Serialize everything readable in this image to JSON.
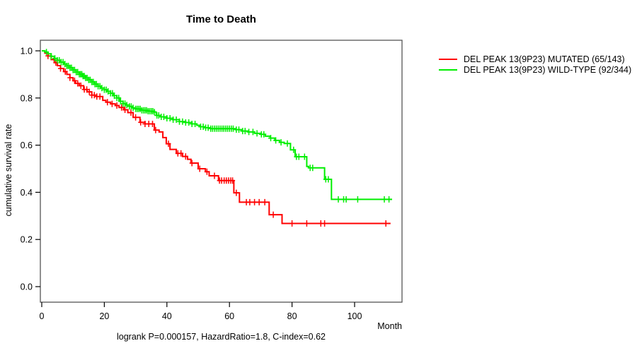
{
  "chart_data": {
    "type": "line",
    "subtype": "kaplan-meier-step",
    "title": "Time to Death",
    "xlabel": "Month",
    "ylabel": "cumulative survival rate",
    "annotation": "logrank P=0.000157, HazardRatio=1.8, C-index=0.62",
    "xlim": [
      0,
      115
    ],
    "ylim": [
      0.0,
      1.0
    ],
    "xticks": [
      0,
      20,
      40,
      60,
      80,
      100
    ],
    "yticks": [
      0.0,
      0.2,
      0.4,
      0.6,
      0.8,
      1.0
    ],
    "grid": false,
    "legend_position": "right-outside",
    "axis_color": "#000000",
    "box_color": "#555555",
    "series": [
      {
        "name": "DEL PEAK 13(9P23) MUTATED (65/143)",
        "color": "#ff0000",
        "events": "65/143",
        "steps": [
          [
            0,
            1.0
          ],
          [
            1,
            0.99
          ],
          [
            2,
            0.978
          ],
          [
            3,
            0.963
          ],
          [
            4,
            0.95
          ],
          [
            5,
            0.937
          ],
          [
            6,
            0.925
          ],
          [
            7,
            0.912
          ],
          [
            8,
            0.9
          ],
          [
            9,
            0.886
          ],
          [
            10,
            0.873
          ],
          [
            10.8,
            0.862
          ],
          [
            12,
            0.852
          ],
          [
            13.4,
            0.836
          ],
          [
            14.5,
            0.826
          ],
          [
            16,
            0.812
          ],
          [
            17.5,
            0.806
          ],
          [
            19.5,
            0.79
          ],
          [
            20.5,
            0.782
          ],
          [
            22,
            0.775
          ],
          [
            23.5,
            0.768
          ],
          [
            24.7,
            0.76
          ],
          [
            26.2,
            0.75
          ],
          [
            27.5,
            0.738
          ],
          [
            29.2,
            0.718
          ],
          [
            31.4,
            0.697
          ],
          [
            33,
            0.69
          ],
          [
            36,
            0.664
          ],
          [
            37.5,
            0.656
          ],
          [
            38.7,
            0.632
          ],
          [
            39.8,
            0.606
          ],
          [
            41,
            0.582
          ],
          [
            43,
            0.565
          ],
          [
            45,
            0.552
          ],
          [
            46.6,
            0.54
          ],
          [
            47.7,
            0.524
          ],
          [
            50,
            0.5
          ],
          [
            52.3,
            0.487
          ],
          [
            53.5,
            0.47
          ],
          [
            56.5,
            0.45
          ],
          [
            61.4,
            0.398
          ],
          [
            63.2,
            0.358
          ],
          [
            72.7,
            0.305
          ],
          [
            76.8,
            0.268
          ],
          [
            111.5,
            0.268
          ]
        ],
        "censor_times": [
          2,
          4.5,
          6,
          7.5,
          9,
          10.5,
          11.5,
          12.5,
          13.6,
          14.4,
          15.2,
          16,
          16.8,
          17.6,
          18.6,
          21,
          22.5,
          24,
          25.5,
          26.6,
          28.5,
          30,
          31.6,
          33,
          34.2,
          35.4,
          36.4,
          40.5,
          43.5,
          44.5,
          46,
          48,
          50.5,
          52.8,
          55.2,
          56.8,
          57.5,
          58.3,
          59,
          59.7,
          60.4,
          61,
          62.2,
          65.4,
          66.5,
          68,
          69.5,
          71.3,
          74,
          80,
          84.7,
          89.2,
          90.4,
          110
        ]
      },
      {
        "name": "DEL PEAK 13(9P23) WILD-TYPE (92/344)",
        "color": "#00ee00",
        "events": "92/344",
        "steps": [
          [
            0,
            1.0
          ],
          [
            1,
            0.995
          ],
          [
            2,
            0.987
          ],
          [
            3,
            0.977
          ],
          [
            4,
            0.968
          ],
          [
            5,
            0.96
          ],
          [
            6,
            0.952
          ],
          [
            7,
            0.944
          ],
          [
            8,
            0.936
          ],
          [
            9,
            0.928
          ],
          [
            10,
            0.919
          ],
          [
            11,
            0.91
          ],
          [
            12,
            0.901
          ],
          [
            13,
            0.893
          ],
          [
            14,
            0.885
          ],
          [
            15,
            0.877
          ],
          [
            16,
            0.868
          ],
          [
            17,
            0.859
          ],
          [
            18,
            0.85
          ],
          [
            19,
            0.842
          ],
          [
            20,
            0.835
          ],
          [
            21,
            0.828
          ],
          [
            22,
            0.82
          ],
          [
            23,
            0.81
          ],
          [
            24,
            0.8
          ],
          [
            25,
            0.786
          ],
          [
            26,
            0.776
          ],
          [
            27,
            0.77
          ],
          [
            28,
            0.764
          ],
          [
            29,
            0.758
          ],
          [
            30,
            0.754
          ],
          [
            32,
            0.748
          ],
          [
            34,
            0.744
          ],
          [
            36,
            0.74
          ],
          [
            36.6,
            0.726
          ],
          [
            38,
            0.72
          ],
          [
            40,
            0.714
          ],
          [
            42,
            0.708
          ],
          [
            44,
            0.7
          ],
          [
            46,
            0.696
          ],
          [
            48,
            0.69
          ],
          [
            49.6,
            0.684
          ],
          [
            50.6,
            0.678
          ],
          [
            52,
            0.674
          ],
          [
            54,
            0.67
          ],
          [
            62,
            0.666
          ],
          [
            64,
            0.66
          ],
          [
            66,
            0.656
          ],
          [
            68,
            0.65
          ],
          [
            70,
            0.646
          ],
          [
            71.5,
            0.638
          ],
          [
            73,
            0.63
          ],
          [
            74.5,
            0.62
          ],
          [
            76,
            0.612
          ],
          [
            77.5,
            0.607
          ],
          [
            79.5,
            0.58
          ],
          [
            81,
            0.551
          ],
          [
            84.7,
            0.51
          ],
          [
            85.3,
            0.504
          ],
          [
            90.4,
            0.455
          ],
          [
            92.6,
            0.37
          ],
          [
            112,
            0.37
          ]
        ],
        "censor_times": [
          1.5,
          3,
          4.2,
          5,
          5.6,
          6.2,
          6.8,
          7.4,
          8,
          8.5,
          9,
          9.5,
          10,
          10.5,
          11,
          11.5,
          12,
          12.4,
          12.8,
          13.2,
          13.6,
          14,
          14.5,
          15,
          15.5,
          16,
          16.5,
          17,
          17.5,
          18,
          18.6,
          19.2,
          20,
          20.6,
          21.2,
          22,
          22.6,
          23.2,
          24,
          24.6,
          25.2,
          26,
          26.6,
          27.2,
          28,
          28.6,
          29.2,
          30,
          30.5,
          31,
          31.5,
          32,
          32.5,
          33,
          33.5,
          34,
          34.5,
          35,
          35.5,
          36,
          36.8,
          37.4,
          38.2,
          39,
          40,
          41,
          42,
          43,
          44,
          45,
          46,
          47,
          48,
          49,
          50.8,
          51.6,
          52.4,
          53.2,
          54,
          54.6,
          55.2,
          55.8,
          56.4,
          57,
          57.6,
          58.2,
          58.8,
          59.4,
          60,
          60.6,
          61.2,
          62.2,
          63,
          64.2,
          65,
          66.2,
          67.5,
          68.8,
          70.2,
          71,
          73.2,
          74.8,
          76.5,
          78.5,
          80.5,
          81.4,
          82.2,
          84,
          85.8,
          86.6,
          90.8,
          91.6,
          94.8,
          96.5,
          97.3,
          101,
          109.5,
          111
        ]
      }
    ]
  }
}
